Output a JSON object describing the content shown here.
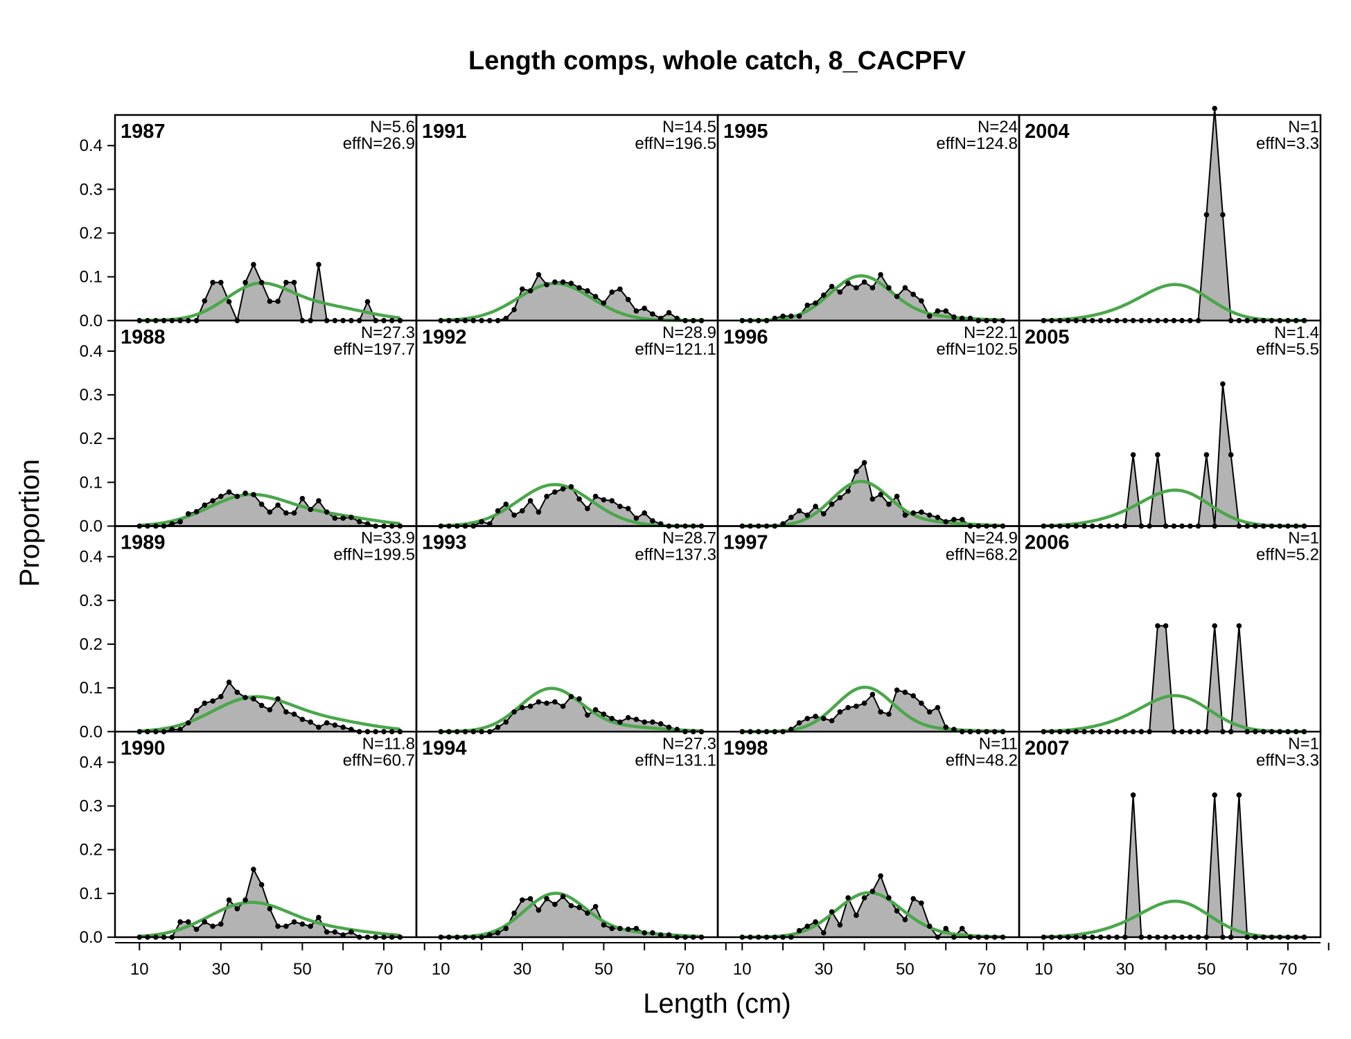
{
  "colors": {
    "obs_fill": "#b3b3b3",
    "obs_line": "#000000",
    "exp_line": "#4aa74a",
    "zero_line": "#bebebe",
    "frame": "#000000"
  },
  "chart_data": {
    "type": "area",
    "title": "Length comps, whole catch, 8_CACPFV",
    "xlabel": "Length (cm)",
    "ylabel": "Proportion",
    "layout": {
      "rows": 4,
      "cols": 4,
      "order": "column-major"
    },
    "xlim": [
      4,
      78
    ],
    "ylim": [
      0,
      0.47
    ],
    "x_ticks": [
      10,
      20,
      30,
      40,
      50,
      60,
      70,
      80
    ],
    "x_tick_labels": [
      "10",
      "30",
      "50",
      "70"
    ],
    "x_tick_labeled_values": [
      10,
      30,
      50,
      70
    ],
    "y_ticks": [
      0.0,
      0.1,
      0.2,
      0.3,
      0.4
    ],
    "y_tick_labels": [
      "0.0",
      "0.1",
      "0.2",
      "0.3",
      "0.4"
    ],
    "bins": [
      10,
      12,
      14,
      16,
      18,
      20,
      22,
      24,
      26,
      28,
      30,
      32,
      34,
      36,
      38,
      40,
      42,
      44,
      46,
      48,
      50,
      52,
      54,
      56,
      58,
      60,
      62,
      64,
      66,
      68,
      70,
      72,
      74
    ],
    "series_legend": {
      "observed": "grey polygon with black points",
      "expected": "green line"
    },
    "panels": [
      {
        "year": "1987",
        "n_label": "N=5.6",
        "effn_label": "effN=26.9",
        "observed": [
          0,
          0,
          0,
          0,
          0,
          0,
          0,
          0,
          0.045,
          0.087,
          0.087,
          0.043,
          0,
          0.087,
          0.128,
          0.087,
          0.044,
          0.044,
          0.087,
          0.087,
          0,
          0,
          0.128,
          0,
          0,
          0,
          0,
          0,
          0.043,
          0,
          0,
          0,
          0
        ],
        "expected": {
          "mode": 39,
          "sd": 8,
          "peak": 0.078,
          "tail_shoulder": 0.03,
          "tail_center": 56,
          "tail_sd": 10
        }
      },
      {
        "year": "1988",
        "n_label": "N=27.3",
        "effn_label": "effN=197.7",
        "observed": [
          0,
          0,
          0,
          0,
          0.005,
          0.01,
          0.028,
          0.033,
          0.048,
          0.058,
          0.068,
          0.078,
          0.068,
          0.075,
          0.072,
          0.05,
          0.032,
          0.048,
          0.03,
          0.03,
          0.063,
          0.038,
          0.058,
          0.032,
          0.018,
          0.018,
          0.02,
          0.01,
          0.005,
          0,
          0,
          0,
          0
        ],
        "expected": {
          "mode": 37,
          "sd": 10,
          "peak": 0.07,
          "tail_shoulder": 0.02,
          "tail_center": 58,
          "tail_sd": 10
        }
      },
      {
        "year": "1989",
        "n_label": "N=33.9",
        "effn_label": "effN=199.5",
        "observed": [
          0,
          0,
          0,
          0,
          0.005,
          0.005,
          0.02,
          0.048,
          0.065,
          0.07,
          0.08,
          0.113,
          0.09,
          0.078,
          0.075,
          0.06,
          0.05,
          0.075,
          0.045,
          0.04,
          0.028,
          0.022,
          0.01,
          0.02,
          0.015,
          0.01,
          0.005,
          0,
          0,
          0,
          0,
          0,
          0
        ],
        "expected": {
          "mode": 38,
          "sd": 10,
          "peak": 0.077,
          "tail_shoulder": 0.02,
          "tail_center": 58,
          "tail_sd": 10
        }
      },
      {
        "year": "1990",
        "n_label": "N=11.8",
        "effn_label": "effN=60.7",
        "observed": [
          0,
          0,
          0,
          0,
          0,
          0.035,
          0.035,
          0.018,
          0.035,
          0.025,
          0.03,
          0.085,
          0.065,
          0.085,
          0.155,
          0.12,
          0.065,
          0.025,
          0.025,
          0.035,
          0.03,
          0.025,
          0.045,
          0.012,
          0.012,
          0.005,
          0.012,
          0,
          0,
          0,
          0,
          0,
          0
        ],
        "expected": {
          "mode": 37,
          "sd": 10,
          "peak": 0.078,
          "tail_shoulder": 0.015,
          "tail_center": 58,
          "tail_sd": 10
        }
      },
      {
        "year": "1991",
        "n_label": "N=14.5",
        "effn_label": "effN=196.5",
        "observed": [
          0,
          0,
          0,
          0,
          0,
          0,
          0,
          0,
          0.005,
          0.025,
          0.072,
          0.068,
          0.105,
          0.082,
          0.088,
          0.088,
          0.085,
          0.075,
          0.068,
          0.055,
          0.04,
          0.065,
          0.072,
          0.048,
          0.022,
          0.028,
          0.015,
          0.005,
          0.018,
          0.005,
          0,
          0,
          0
        ],
        "expected": {
          "mode": 38,
          "sd": 9,
          "peak": 0.085,
          "tail_shoulder": 0,
          "tail_center": 58,
          "tail_sd": 10
        }
      },
      {
        "year": "1992",
        "n_label": "N=28.9",
        "effn_label": "effN=121.1",
        "observed": [
          0,
          0,
          0,
          0,
          0,
          0.01,
          0.005,
          0.035,
          0.05,
          0.025,
          0.035,
          0.058,
          0.032,
          0.068,
          0.078,
          0.085,
          0.09,
          0.062,
          0.04,
          0.068,
          0.06,
          0.058,
          0.045,
          0.04,
          0.018,
          0.03,
          0.012,
          0.005,
          0,
          0,
          0,
          0,
          0
        ],
        "expected": {
          "mode": 38,
          "sd": 9,
          "peak": 0.095,
          "tail_shoulder": 0,
          "tail_center": 58,
          "tail_sd": 10
        }
      },
      {
        "year": "1993",
        "n_label": "N=28.7",
        "effn_label": "effN=137.3",
        "observed": [
          0,
          0,
          0,
          0,
          0,
          0,
          0,
          0.01,
          0.022,
          0.045,
          0.055,
          0.058,
          0.068,
          0.065,
          0.068,
          0.058,
          0.08,
          0.075,
          0.038,
          0.05,
          0.04,
          0.03,
          0.022,
          0.032,
          0.028,
          0.022,
          0.022,
          0.018,
          0.01,
          0.005,
          0,
          0,
          0
        ],
        "expected": {
          "mode": 37,
          "sd": 7.5,
          "peak": 0.097,
          "tail_shoulder": 0.01,
          "tail_center": 55,
          "tail_sd": 10
        }
      },
      {
        "year": "1994",
        "n_label": "N=27.3",
        "effn_label": "effN=131.1",
        "observed": [
          0,
          0,
          0,
          0,
          0,
          0,
          0.005,
          0.01,
          0.02,
          0.055,
          0.085,
          0.088,
          0.062,
          0.088,
          0.075,
          0.093,
          0.072,
          0.068,
          0.055,
          0.07,
          0.028,
          0.02,
          0.02,
          0.018,
          0.02,
          0.01,
          0.01,
          0.005,
          0.005,
          0,
          0,
          0,
          0
        ],
        "expected": {
          "mode": 38,
          "sd": 7.5,
          "peak": 0.098,
          "tail_shoulder": 0.01,
          "tail_center": 55,
          "tail_sd": 10
        }
      },
      {
        "year": "1995",
        "n_label": "N=24",
        "effn_label": "effN=124.8",
        "observed": [
          0,
          0,
          0,
          0,
          0.005,
          0.01,
          0.01,
          0.01,
          0.035,
          0.04,
          0.058,
          0.078,
          0.065,
          0.085,
          0.075,
          0.088,
          0.075,
          0.105,
          0.075,
          0.055,
          0.075,
          0.06,
          0.045,
          0.01,
          0.022,
          0.022,
          0.008,
          0.005,
          0.005,
          0,
          0,
          0,
          0
        ],
        "expected": {
          "mode": 39,
          "sd": 7.5,
          "peak": 0.1,
          "tail_shoulder": 0.008,
          "tail_center": 55,
          "tail_sd": 10
        }
      },
      {
        "year": "1996",
        "n_label": "N=22.1",
        "effn_label": "effN=102.5",
        "observed": [
          0,
          0,
          0,
          0,
          0,
          0.005,
          0.02,
          0.035,
          0.025,
          0.045,
          0.028,
          0.05,
          0.065,
          0.08,
          0.125,
          0.145,
          0.062,
          0.072,
          0.05,
          0.068,
          0.025,
          0.03,
          0.032,
          0.025,
          0.02,
          0.01,
          0.015,
          0.015,
          0,
          0,
          0,
          0,
          0
        ],
        "expected": {
          "mode": 39,
          "sd": 7,
          "peak": 0.1,
          "tail_shoulder": 0.008,
          "tail_center": 55,
          "tail_sd": 10
        }
      },
      {
        "year": "1997",
        "n_label": "N=24.9",
        "effn_label": "effN=68.2",
        "observed": [
          0,
          0,
          0,
          0,
          0,
          0,
          0.005,
          0.02,
          0.03,
          0.035,
          0.03,
          0.025,
          0.045,
          0.055,
          0.058,
          0.065,
          0.085,
          0.045,
          0.04,
          0.095,
          0.09,
          0.082,
          0.065,
          0.045,
          0.055,
          0.01,
          0.005,
          0,
          0,
          0,
          0,
          0,
          0
        ],
        "expected": {
          "mode": 40,
          "sd": 7,
          "peak": 0.1,
          "tail_shoulder": 0.005,
          "tail_center": 55,
          "tail_sd": 10
        }
      },
      {
        "year": "1998",
        "n_label": "N=11",
        "effn_label": "effN=48.2",
        "observed": [
          0,
          0,
          0,
          0,
          0,
          0,
          0,
          0.015,
          0.025,
          0.035,
          0.01,
          0.058,
          0.028,
          0.09,
          0.05,
          0.09,
          0.105,
          0.14,
          0.09,
          0.06,
          0.04,
          0.088,
          0.078,
          0.025,
          0,
          0.02,
          0,
          0.02,
          0,
          0,
          0,
          0,
          0
        ],
        "expected": {
          "mode": 41,
          "sd": 8,
          "peak": 0.1,
          "tail_shoulder": 0.005,
          "tail_center": 55,
          "tail_sd": 10
        }
      },
      {
        "year": "2004",
        "n_label": "N=1",
        "effn_label": "effN=3.3",
        "observed": [
          0,
          0,
          0,
          0,
          0,
          0,
          0,
          0,
          0,
          0,
          0,
          0,
          0,
          0,
          0,
          0,
          0,
          0,
          0,
          0,
          0.242,
          0.485,
          0.242,
          0,
          0,
          0,
          0,
          0,
          0,
          0,
          0,
          0,
          0
        ],
        "expected": {
          "mode": 43,
          "sd": 8,
          "peak": 0.078,
          "tail_shoulder": 0.015,
          "tail_center": 30,
          "tail_sd": 8
        }
      },
      {
        "year": "2005",
        "n_label": "N=1.4",
        "effn_label": "effN=5.5",
        "observed": [
          0,
          0,
          0,
          0,
          0,
          0,
          0,
          0,
          0,
          0,
          0,
          0.163,
          0,
          0,
          0.163,
          0,
          0,
          0,
          0,
          0,
          0.163,
          0,
          0.325,
          0.163,
          0,
          0,
          0,
          0,
          0,
          0,
          0,
          0,
          0
        ],
        "expected": {
          "mode": 43,
          "sd": 8,
          "peak": 0.078,
          "tail_shoulder": 0.015,
          "tail_center": 30,
          "tail_sd": 8
        }
      },
      {
        "year": "2006",
        "n_label": "N=1",
        "effn_label": "effN=5.2",
        "observed": [
          0,
          0,
          0,
          0,
          0,
          0,
          0,
          0,
          0,
          0,
          0,
          0,
          0,
          0,
          0.242,
          0.242,
          0,
          0,
          0,
          0,
          0,
          0.242,
          0,
          0,
          0.242,
          0,
          0,
          0,
          0,
          0,
          0,
          0,
          0
        ],
        "expected": {
          "mode": 43,
          "sd": 8,
          "peak": 0.078,
          "tail_shoulder": 0.015,
          "tail_center": 30,
          "tail_sd": 8
        }
      },
      {
        "year": "2007",
        "n_label": "N=1",
        "effn_label": "effN=3.3",
        "observed": [
          0,
          0,
          0,
          0,
          0,
          0,
          0,
          0,
          0,
          0,
          0,
          0.325,
          0,
          0,
          0,
          0,
          0,
          0,
          0,
          0,
          0,
          0.325,
          0,
          0,
          0.325,
          0,
          0,
          0,
          0,
          0,
          0,
          0,
          0
        ],
        "expected": {
          "mode": 43,
          "sd": 8,
          "peak": 0.078,
          "tail_shoulder": 0.015,
          "tail_center": 30,
          "tail_sd": 8
        }
      }
    ]
  }
}
